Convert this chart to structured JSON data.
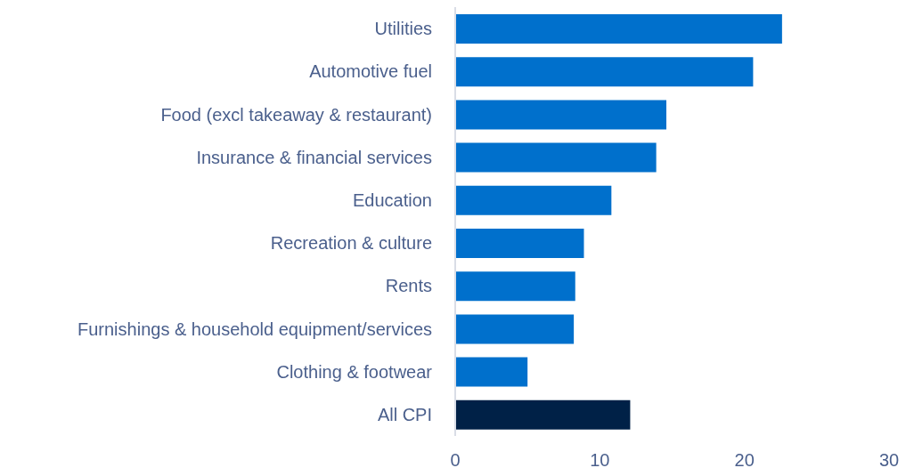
{
  "chart_data": {
    "type": "bar",
    "orientation": "horizontal",
    "categories": [
      "Utilities",
      "Automotive fuel",
      "Food (excl takeaway & restaurant)",
      "Insurance & financial services",
      "Education",
      "Recreation & culture",
      "Rents",
      "Furnishings & household equipment/services",
      "Clothing & footwear",
      "All CPI"
    ],
    "values": [
      22.6,
      20.6,
      14.6,
      13.9,
      10.8,
      8.9,
      8.3,
      8.2,
      5.0,
      12.1
    ],
    "colors": [
      "#0070cc",
      "#0070cc",
      "#0070cc",
      "#0070cc",
      "#0070cc",
      "#0070cc",
      "#0070cc",
      "#0070cc",
      "#0070cc",
      "#002147"
    ],
    "xlim": [
      0,
      30
    ],
    "xticks": [
      0,
      10,
      20,
      30
    ],
    "grid": false
  }
}
